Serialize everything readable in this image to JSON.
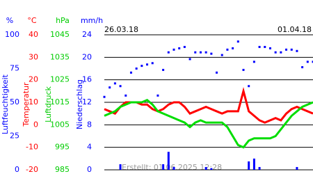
{
  "chart_data": {
    "type": "line",
    "start_date": "26.03.18",
    "end_date": "01.04.18",
    "credit": "Erstellt: 01.06.2025 12:28",
    "axes": [
      {
        "unit": "%",
        "label": "Luftfeuchtigkeit",
        "color": "#0000ff",
        "ylim": [
          0,
          100
        ],
        "yticks": [
          100,
          75,
          50,
          25,
          0
        ]
      },
      {
        "unit": "°C",
        "label": "Temperatur",
        "color": "#ff0000",
        "ylim": [
          -20,
          40
        ],
        "yticks": [
          40,
          30,
          20,
          10,
          0,
          -10,
          -20
        ]
      },
      {
        "unit": "hPa",
        "label": "Luftdruck",
        "color": "#00cc00",
        "ylim": [
          985,
          1045
        ],
        "yticks": [
          1045,
          1035,
          1025,
          1015,
          1005,
          995,
          985
        ]
      },
      {
        "unit": "mm/h",
        "label": "Niederschlag",
        "color": "#0000ff",
        "ylim": [
          0,
          24
        ],
        "yticks": [
          24,
          20,
          16,
          12,
          8,
          4,
          0
        ]
      }
    ],
    "grid_axis": 3,
    "series": [
      {
        "type": "dots",
        "axis": 0,
        "color": "#0000ff",
        "values": [
          54,
          61,
          64,
          62,
          55,
          72,
          75,
          77,
          78,
          79,
          55,
          74,
          87,
          89,
          90,
          91,
          82,
          87,
          87,
          87,
          86,
          72,
          85,
          89,
          90,
          95,
          74,
          62,
          80,
          91,
          91,
          90,
          87,
          87,
          89,
          89,
          88,
          76,
          80,
          80
        ]
      },
      {
        "type": "line",
        "axis": 1,
        "color": "#ff0000",
        "values": [
          7,
          6,
          5,
          8,
          10,
          10,
          10,
          9,
          9,
          7,
          6,
          7,
          9,
          10,
          10,
          8,
          5,
          6,
          7,
          8,
          7,
          6,
          5,
          6,
          6,
          6,
          15,
          6,
          4,
          2,
          1,
          2,
          3,
          2,
          5,
          7,
          8,
          7,
          6,
          5
        ]
      },
      {
        "type": "line",
        "axis": 2,
        "color": "#00dd00",
        "values": [
          1009,
          1010,
          1011,
          1013,
          1014,
          1015,
          1015,
          1015,
          1016,
          1014,
          1011,
          1010,
          1009,
          1008,
          1007,
          1006,
          1004,
          1006,
          1007,
          1006,
          1006,
          1006,
          1006,
          1004,
          1000,
          996,
          995,
          998,
          999,
          999,
          999,
          999,
          1000,
          1003,
          1006,
          1009,
          1011,
          1013,
          1014,
          1015
        ]
      },
      {
        "type": "bar",
        "axis": 3,
        "color": "#0000ff",
        "values": [
          0,
          0,
          0,
          1,
          0,
          0,
          0,
          0,
          0,
          0,
          0,
          1,
          3.2,
          0.5,
          0,
          0,
          0,
          0,
          0,
          0.5,
          0.3,
          0,
          0,
          0,
          0,
          0,
          0,
          1.5,
          2,
          0.5,
          0,
          0,
          0,
          0,
          0,
          0,
          0.5,
          0,
          0,
          0
        ]
      }
    ]
  }
}
